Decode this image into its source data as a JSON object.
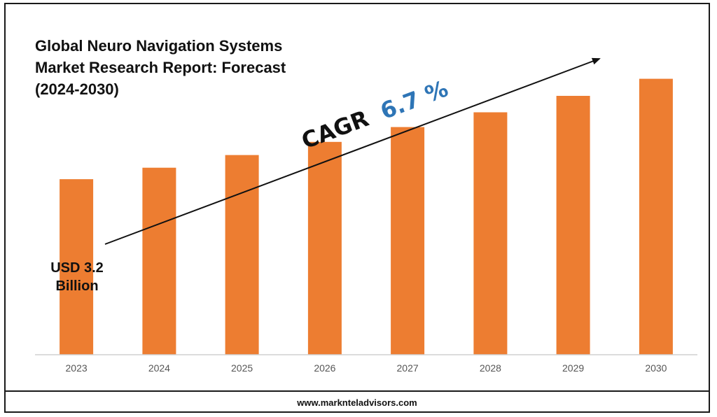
{
  "title": "Global Neuro Navigation Systems Market Research Report: Forecast (2024-2030)",
  "footer": "www.marknteladvisors.com",
  "cagr": {
    "prefix": "CAGR",
    "value": "6.7 %"
  },
  "base_annotation": {
    "line1": "USD 3.2",
    "line2": "Billion"
  },
  "colors": {
    "bar": "#ED7D31",
    "cagr_value": "#2E75B6",
    "text": "#111111"
  },
  "chart_data": {
    "type": "bar",
    "title": "Global Neuro Navigation Systems Market Research Report: Forecast (2024-2030)",
    "xlabel": "",
    "ylabel": "",
    "categories": [
      "2023",
      "2024",
      "2025",
      "2026",
      "2027",
      "2028",
      "2029",
      "2030"
    ],
    "values": [
      3.2,
      3.41,
      3.64,
      3.88,
      4.15,
      4.42,
      4.72,
      5.03
    ],
    "ylim": [
      0,
      5.0
    ],
    "grid": false,
    "legend": "none"
  }
}
